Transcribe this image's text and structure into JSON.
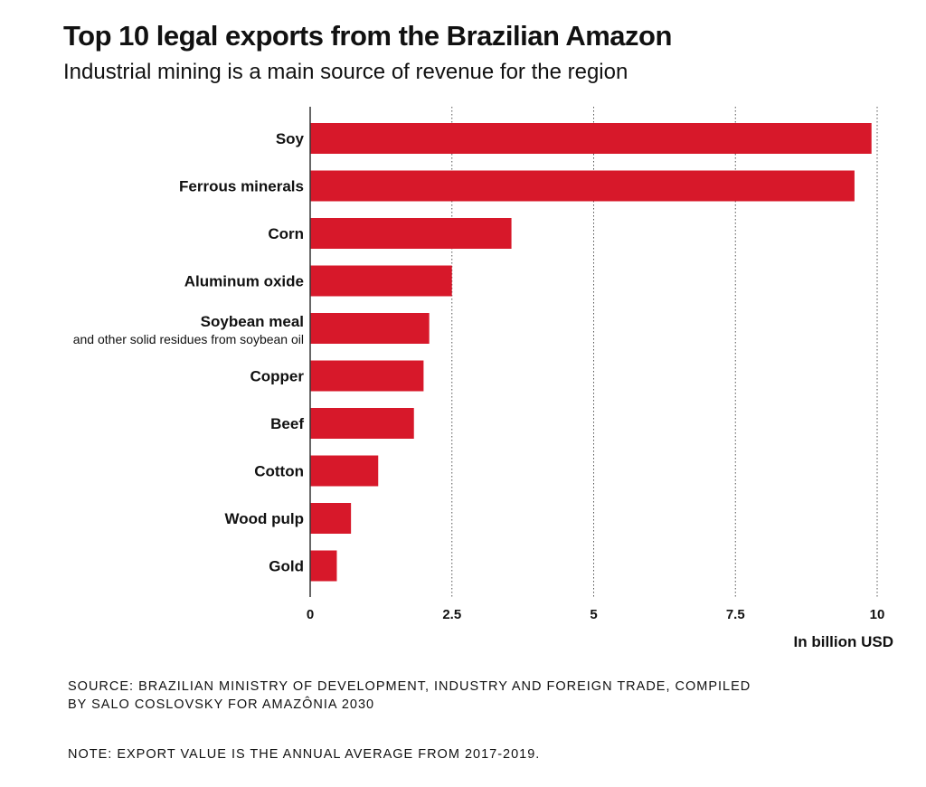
{
  "header": {
    "title": "Top 10 legal exports from the Brazilian Amazon",
    "subtitle": "Industrial mining is a main source of revenue for the region"
  },
  "chart_data": {
    "type": "bar",
    "orientation": "horizontal",
    "title": "Top 10 legal exports from the Brazilian Amazon",
    "subtitle": "Industrial mining is a main source of revenue for the region",
    "categories": [
      "Soy",
      "Ferrous minerals",
      "Corn",
      "Aluminum oxide",
      "Soybean meal",
      "Copper",
      "Beef",
      "Cotton",
      "Wood pulp",
      "Gold"
    ],
    "category_sublabels": [
      "",
      "",
      "",
      "",
      "and other solid residues from soybean oil",
      "",
      "",
      "",
      "",
      ""
    ],
    "values": [
      9.9,
      9.6,
      3.55,
      2.5,
      2.1,
      2.0,
      1.83,
      1.2,
      0.72,
      0.47
    ],
    "xlabel": "In billion USD",
    "ylabel": "",
    "xlim": [
      0,
      10
    ],
    "xticks": [
      0,
      2.5,
      5,
      7.5,
      10
    ],
    "xtick_labels": [
      "0",
      "2.5",
      "5",
      "7.5",
      "10"
    ],
    "grid": "vertical dotted",
    "bar_color": "#d7182a"
  },
  "footer": {
    "source": "SOURCE: BRAZILIAN MINISTRY OF DEVELOPMENT, INDUSTRY AND FOREIGN TRADE, COMPILED BY SALO COSLOVSKY FOR AMAZÔNIA 2030",
    "note": "NOTE: EXPORT VALUE IS THE ANNUAL AVERAGE FROM 2017-2019."
  }
}
